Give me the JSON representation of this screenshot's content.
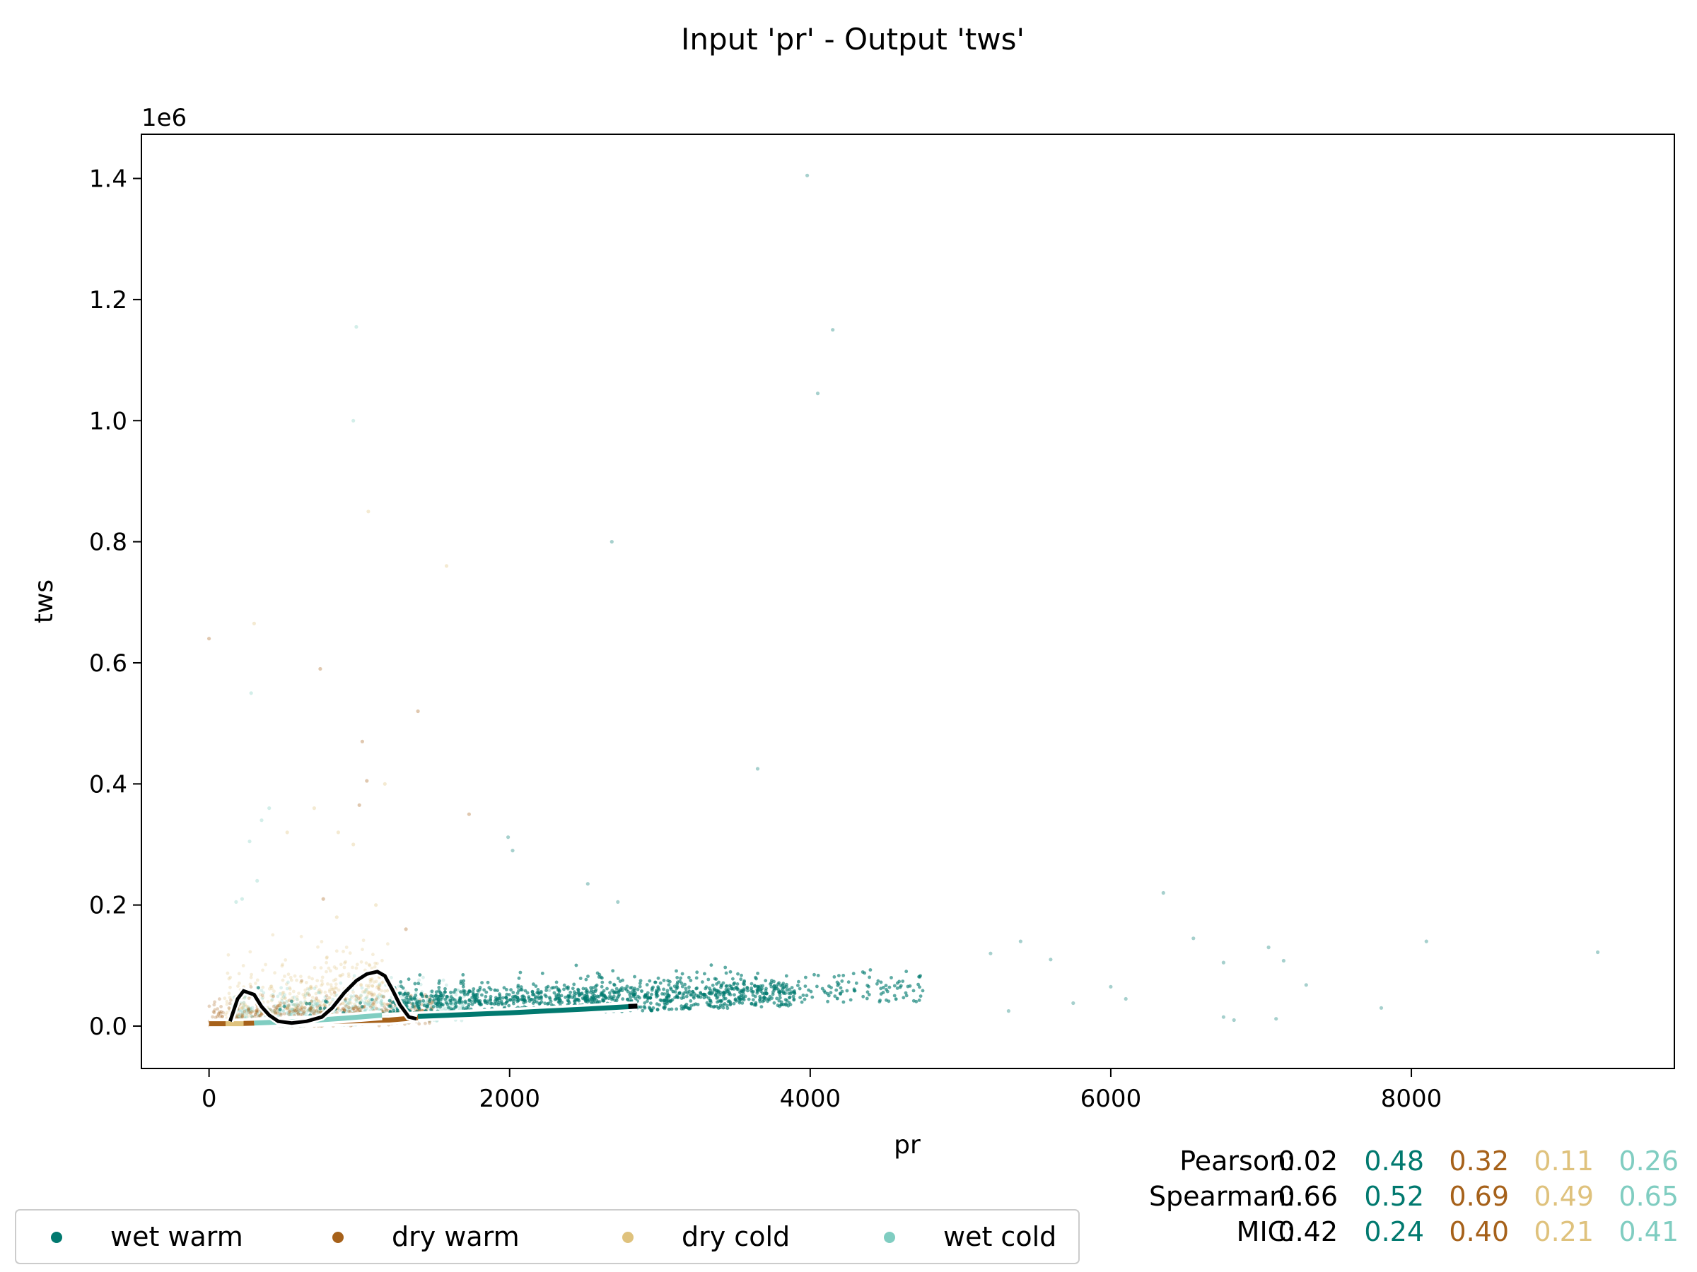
{
  "chart_data": {
    "type": "scatter",
    "title": "Input 'pr' - Output 'tws'",
    "xlabel": "pr",
    "ylabel": "tws",
    "y_multiplier_label": "1e6",
    "xlim": [
      -450,
      9750
    ],
    "ylim": [
      -0.07,
      1.473
    ],
    "x_ticks": [
      0,
      2000,
      4000,
      6000,
      8000
    ],
    "x_tick_labels": [
      "0",
      "2000",
      "4000",
      "6000",
      "8000"
    ],
    "y_ticks": [
      0.0,
      0.2,
      0.4,
      0.6,
      0.8,
      1.0,
      1.2,
      1.4
    ],
    "y_tick_labels": [
      "0.0",
      "0.2",
      "0.4",
      "0.6",
      "0.8",
      "1.0",
      "1.2",
      "1.4"
    ],
    "grid": false,
    "legend_position": "bottom-left, below plot",
    "series": [
      {
        "name": "wet warm",
        "color": "#01796f",
        "trend": [
          [
            290,
            0.006
          ],
          [
            800,
            0.01
          ],
          [
            1400,
            0.016
          ],
          [
            2000,
            0.022
          ],
          [
            2500,
            0.028
          ],
          [
            2850,
            0.033
          ]
        ],
        "outliers": [
          [
            3980,
            1.405
          ],
          [
            4150,
            1.15
          ],
          [
            4050,
            1.045
          ],
          [
            2680,
            0.8
          ],
          [
            3650,
            0.425
          ],
          [
            1990,
            0.312
          ],
          [
            2020,
            0.29
          ],
          [
            2520,
            0.235
          ],
          [
            2720,
            0.205
          ],
          [
            6350,
            0.22
          ],
          [
            5400,
            0.14
          ],
          [
            6550,
            0.145
          ],
          [
            8100,
            0.14
          ],
          [
            9240,
            0.122
          ],
          [
            7050,
            0.13
          ],
          [
            6750,
            0.105
          ],
          [
            7150,
            0.108
          ],
          [
            5200,
            0.12
          ],
          [
            5600,
            0.11
          ],
          [
            6000,
            0.065
          ],
          [
            7300,
            0.068
          ],
          [
            6100,
            0.045
          ],
          [
            7800,
            0.03
          ],
          [
            6750,
            0.015
          ],
          [
            6820,
            0.01
          ],
          [
            7100,
            0.012
          ],
          [
            5750,
            0.038
          ],
          [
            5320,
            0.025
          ]
        ]
      },
      {
        "name": "dry warm",
        "color": "#a6611a",
        "trend": [
          [
            0,
            0.004
          ],
          [
            150,
            0.004
          ],
          [
            1200,
            0.01
          ],
          [
            1390,
            0.014
          ]
        ],
        "outliers": [
          [
            0,
            0.64
          ],
          [
            740,
            0.59
          ],
          [
            1390,
            0.52
          ],
          [
            1020,
            0.47
          ],
          [
            1050,
            0.405
          ],
          [
            1730,
            0.35
          ],
          [
            1000,
            0.365
          ],
          [
            1310,
            0.16
          ],
          [
            760,
            0.21
          ]
        ]
      },
      {
        "name": "dry cold",
        "color": "#dfc27d",
        "trend": [
          [
            110,
            0.004
          ],
          [
            230,
            0.004
          ]
        ],
        "outliers": [
          [
            300,
            0.665
          ],
          [
            1060,
            0.85
          ],
          [
            520,
            0.32
          ],
          [
            860,
            0.32
          ],
          [
            960,
            0.3
          ],
          [
            1170,
            0.4
          ],
          [
            1580,
            0.76
          ],
          [
            700,
            0.36
          ],
          [
            1110,
            0.2
          ],
          [
            850,
            0.18
          ]
        ]
      },
      {
        "name": "wet cold",
        "color": "#80cdc1",
        "trend": [
          [
            300,
            0.005
          ],
          [
            600,
            0.008
          ],
          [
            900,
            0.013
          ],
          [
            1150,
            0.018
          ]
        ],
        "outliers": [
          [
            960,
            1.0
          ],
          [
            980,
            1.155
          ],
          [
            280,
            0.55
          ],
          [
            400,
            0.36
          ],
          [
            350,
            0.34
          ],
          [
            180,
            0.205
          ],
          [
            220,
            0.21
          ],
          [
            270,
            0.305
          ],
          [
            320,
            0.24
          ]
        ]
      }
    ],
    "aggregate_line": {
      "color": "#000000",
      "points": [
        [
          140,
          0.008
        ],
        [
          190,
          0.045
        ],
        [
          230,
          0.058
        ],
        [
          300,
          0.052
        ],
        [
          350,
          0.032
        ],
        [
          400,
          0.018
        ],
        [
          460,
          0.008
        ],
        [
          550,
          0.005
        ],
        [
          650,
          0.008
        ],
        [
          750,
          0.015
        ],
        [
          820,
          0.03
        ],
        [
          900,
          0.055
        ],
        [
          980,
          0.075
        ],
        [
          1050,
          0.086
        ],
        [
          1120,
          0.09
        ],
        [
          1170,
          0.083
        ],
        [
          1220,
          0.06
        ],
        [
          1270,
          0.035
        ],
        [
          1330,
          0.015
        ],
        [
          1380,
          0.012
        ]
      ]
    },
    "stats": [
      {
        "label": "Pearson:",
        "overall": "0.02",
        "values": [
          "0.48",
          "0.32",
          "0.11",
          "0.26"
        ]
      },
      {
        "label": "Spearman:",
        "overall": "0.66",
        "values": [
          "0.52",
          "0.69",
          "0.49",
          "0.65"
        ]
      },
      {
        "label": "MIC:",
        "overall": "0.42",
        "values": [
          "0.24",
          "0.40",
          "0.21",
          "0.41"
        ]
      }
    ]
  }
}
